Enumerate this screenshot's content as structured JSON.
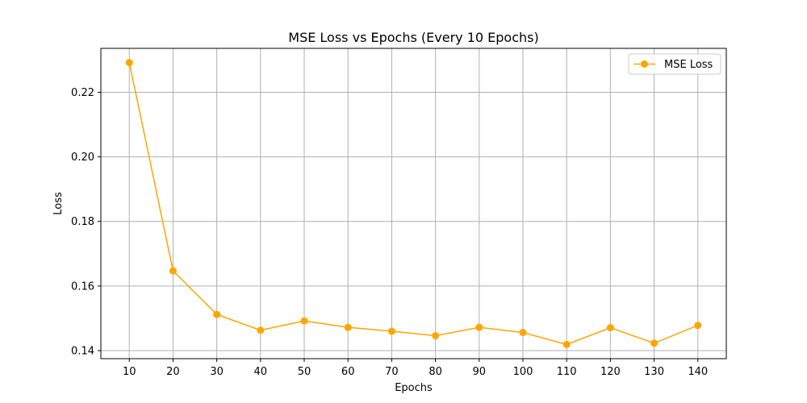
{
  "chart_data": {
    "type": "line",
    "title": "MSE Loss vs Epochs (Every 10 Epochs)",
    "xlabel": "Epochs",
    "ylabel": "Loss",
    "x": [
      10,
      20,
      30,
      40,
      50,
      60,
      70,
      80,
      90,
      100,
      110,
      120,
      130,
      140
    ],
    "xticks": [
      "10",
      "20",
      "30",
      "40",
      "50",
      "60",
      "70",
      "80",
      "90",
      "100",
      "110",
      "120",
      "130",
      "140"
    ],
    "yticks": [
      "0.14",
      "0.16",
      "0.18",
      "0.20",
      "0.22"
    ],
    "ytick_values": [
      0.14,
      0.16,
      0.18,
      0.2,
      0.22
    ],
    "xlim": [
      3.5,
      146.5
    ],
    "ylim": [
      0.1375,
      0.2336
    ],
    "grid": true,
    "legend_position": "top-right",
    "series": [
      {
        "name": "MSE Loss",
        "color": "#ffa500",
        "marker": "circle",
        "values": [
          0.2292,
          0.1647,
          0.1512,
          0.1463,
          0.1492,
          0.1472,
          0.146,
          0.1446,
          0.1472,
          0.1456,
          0.1419,
          0.1471,
          0.1423,
          0.1478
        ]
      }
    ]
  }
}
